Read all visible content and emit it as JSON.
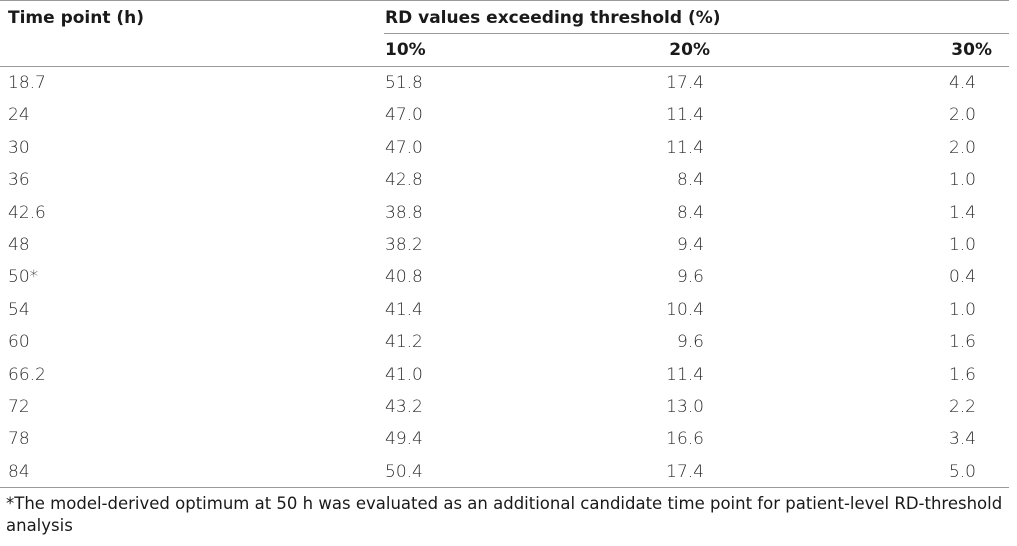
{
  "table": {
    "header": {
      "time_col": "Time point (h)",
      "group_label": "RD values exceeding threshold (%)",
      "sub_cols": [
        "10%",
        "20%",
        "30%"
      ]
    },
    "rows": [
      {
        "time": "18.7",
        "v10": "51.8",
        "v20": "17.4",
        "v30": "4.4"
      },
      {
        "time": "24",
        "v10": "47.0",
        "v20": "11.4",
        "v30": "2.0"
      },
      {
        "time": "30",
        "v10": "47.0",
        "v20": "11.4",
        "v30": "2.0"
      },
      {
        "time": "36",
        "v10": "42.8",
        "v20": "8.4",
        "v30": "1.0"
      },
      {
        "time": "42.6",
        "v10": "38.8",
        "v20": "8.4",
        "v30": "1.4"
      },
      {
        "time": "48",
        "v10": "38.2",
        "v20": "9.4",
        "v30": "1.0"
      },
      {
        "time": "50*",
        "v10": "40.8",
        "v20": "9.6",
        "v30": "0.4"
      },
      {
        "time": "54",
        "v10": "41.4",
        "v20": "10.4",
        "v30": "1.0"
      },
      {
        "time": "60",
        "v10": "41.2",
        "v20": "9.6",
        "v30": "1.6"
      },
      {
        "time": "66.2",
        "v10": "41.0",
        "v20": "11.4",
        "v30": "1.6"
      },
      {
        "time": "72",
        "v10": "43.2",
        "v20": "13.0",
        "v30": "2.2"
      },
      {
        "time": "78",
        "v10": "49.4",
        "v20": "16.6",
        "v30": "3.4"
      },
      {
        "time": "84",
        "v10": "50.4",
        "v20": "17.4",
        "v30": "5.0"
      }
    ],
    "footnote": "*The model-derived optimum at 50 h was evaluated as an additional candidate time point for patient-level RD-threshold analysis"
  }
}
